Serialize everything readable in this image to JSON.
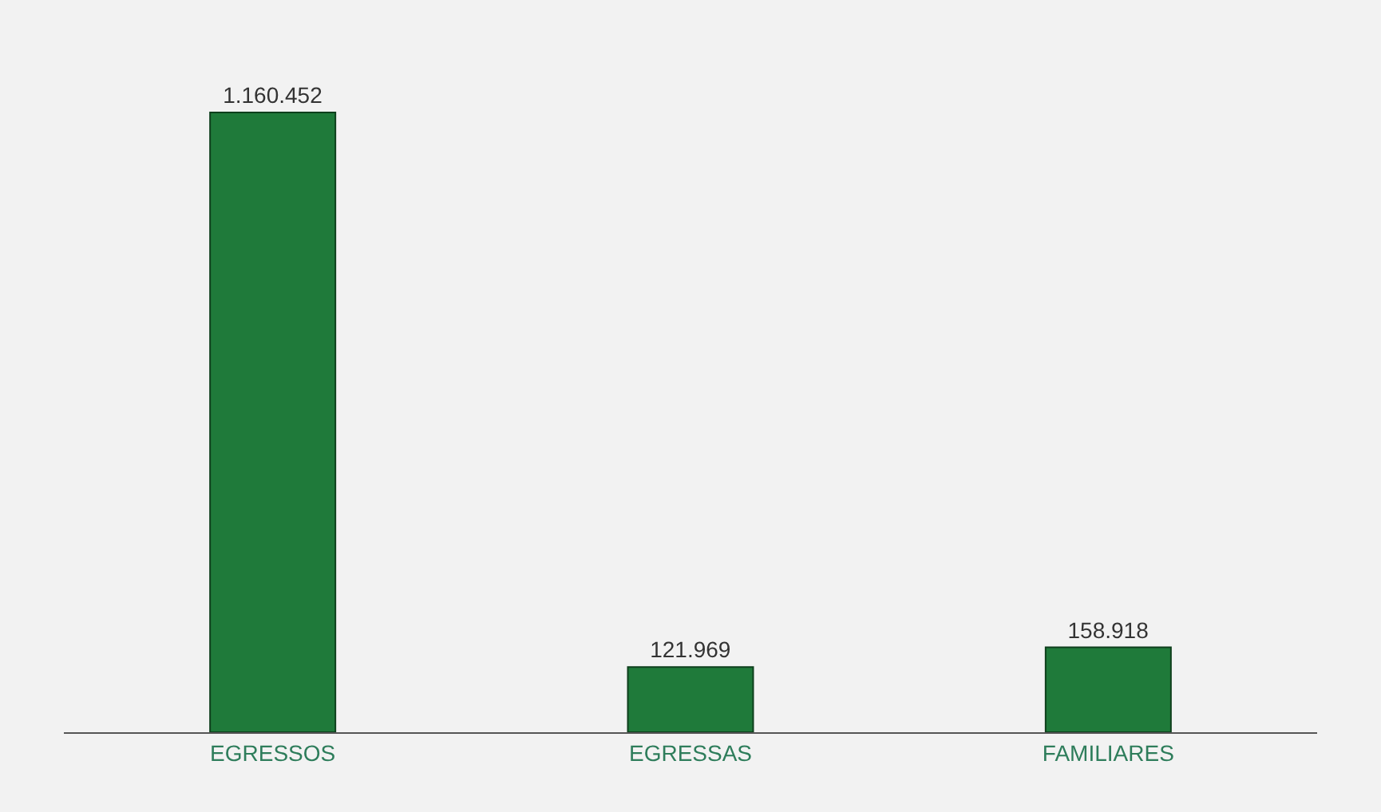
{
  "chart_data": {
    "type": "bar",
    "categories": [
      "EGRESSOS",
      "EGRESSAS",
      "FAMILIARES"
    ],
    "values": [
      1160452,
      121969,
      158918
    ],
    "value_labels": [
      "1.160.452",
      "121.969",
      "158.918"
    ],
    "color": "#1f7a3a"
  }
}
